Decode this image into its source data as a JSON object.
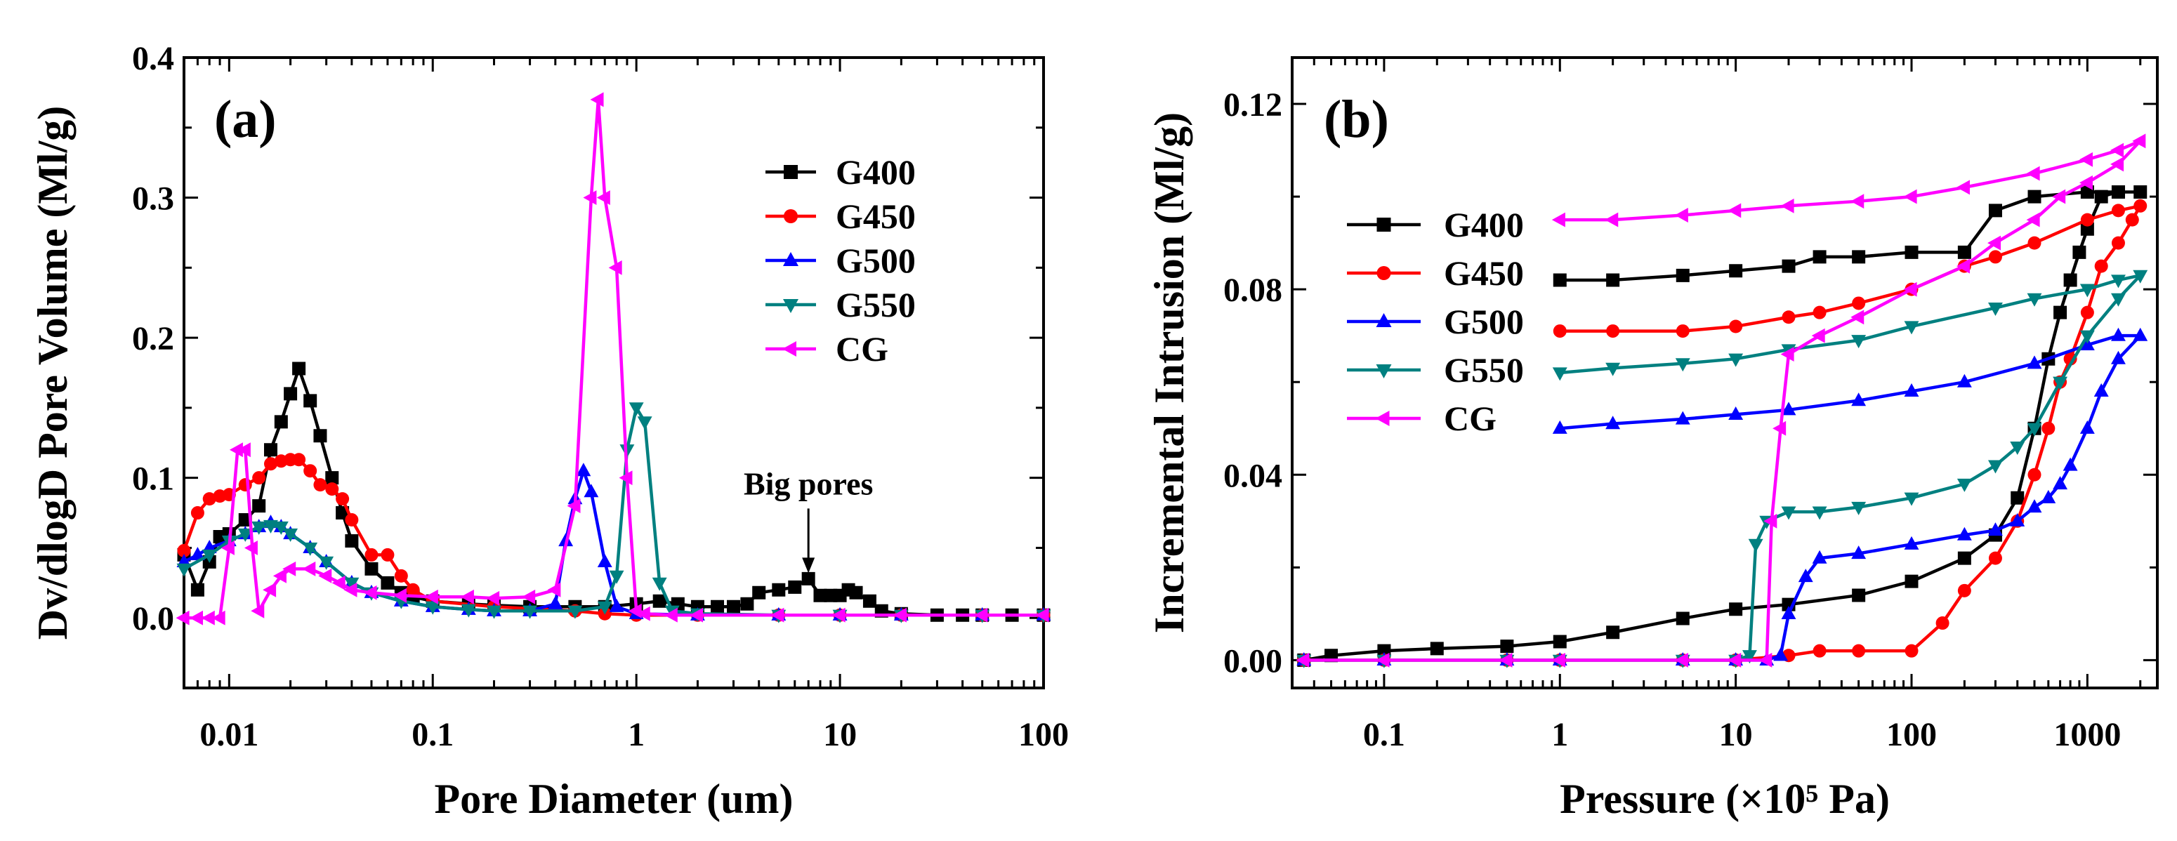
{
  "chart_data": [
    {
      "type": "line",
      "panel_label": "(a)",
      "xlabel": "Pore Diameter (um)",
      "ylabel": "Dv/dlogD Pore Volume (Ml/g)",
      "xscale": "log",
      "xlim": [
        0.006,
        100
      ],
      "ylim": [
        -0.05,
        0.4
      ],
      "xticks": [
        {
          "value": 0.01,
          "label": "0.01"
        },
        {
          "value": 0.1,
          "label": "0.1"
        },
        {
          "value": 1,
          "label": "1"
        },
        {
          "value": 10,
          "label": "10"
        },
        {
          "value": 100,
          "label": "100"
        }
      ],
      "yticks": [
        {
          "value": 0.0,
          "label": "0.0"
        },
        {
          "value": 0.1,
          "label": "0.1"
        },
        {
          "value": 0.2,
          "label": "0.2"
        },
        {
          "value": 0.3,
          "label": "0.3"
        },
        {
          "value": 0.4,
          "label": "0.4"
        }
      ],
      "legend_position": "top-right",
      "annotation": {
        "text": "Big pores",
        "x": 7,
        "y": 0.028
      },
      "series": [
        {
          "name": "G400",
          "color": "#000000",
          "marker": "square",
          "x": [
            0.006,
            0.007,
            0.008,
            0.009,
            0.01,
            0.012,
            0.014,
            0.016,
            0.018,
            0.02,
            0.022,
            0.025,
            0.028,
            0.032,
            0.036,
            0.04,
            0.05,
            0.06,
            0.07,
            0.08,
            0.1,
            0.15,
            0.2,
            0.3,
            0.5,
            0.7,
            1,
            1.3,
            1.6,
            2,
            2.5,
            3,
            3.5,
            4,
            5,
            6,
            7,
            8,
            9,
            10,
            11,
            12,
            14,
            16,
            20,
            30,
            40,
            50,
            70,
            100
          ],
          "y": [
            0.045,
            0.02,
            0.04,
            0.058,
            0.06,
            0.07,
            0.08,
            0.12,
            0.14,
            0.16,
            0.178,
            0.155,
            0.13,
            0.1,
            0.075,
            0.055,
            0.035,
            0.025,
            0.018,
            0.015,
            0.012,
            0.01,
            0.009,
            0.008,
            0.008,
            0.008,
            0.01,
            0.012,
            0.01,
            0.008,
            0.008,
            0.008,
            0.01,
            0.018,
            0.02,
            0.022,
            0.028,
            0.016,
            0.016,
            0.016,
            0.02,
            0.018,
            0.012,
            0.005,
            0.003,
            0.002,
            0.002,
            0.002,
            0.002,
            0.002
          ]
        },
        {
          "name": "G450",
          "color": "#ff0000",
          "marker": "circle",
          "x": [
            0.006,
            0.007,
            0.008,
            0.009,
            0.01,
            0.012,
            0.014,
            0.016,
            0.018,
            0.02,
            0.022,
            0.025,
            0.028,
            0.032,
            0.036,
            0.04,
            0.05,
            0.06,
            0.07,
            0.08,
            0.1,
            0.2,
            0.5,
            0.7,
            1,
            2,
            5,
            10,
            20,
            50,
            100
          ],
          "y": [
            0.048,
            0.075,
            0.085,
            0.087,
            0.088,
            0.095,
            0.1,
            0.11,
            0.112,
            0.113,
            0.113,
            0.105,
            0.095,
            0.092,
            0.085,
            0.07,
            0.045,
            0.045,
            0.03,
            0.02,
            0.012,
            0.008,
            0.005,
            0.003,
            0.002,
            0.002,
            0.002,
            0.002,
            0.002,
            0.002,
            0.002
          ]
        },
        {
          "name": "G500",
          "color": "#0000ff",
          "marker": "triangle-up",
          "x": [
            0.006,
            0.007,
            0.008,
            0.01,
            0.012,
            0.014,
            0.016,
            0.018,
            0.02,
            0.025,
            0.03,
            0.04,
            0.05,
            0.07,
            0.1,
            0.15,
            0.2,
            0.3,
            0.4,
            0.45,
            0.5,
            0.55,
            0.6,
            0.7,
            0.8,
            1,
            2,
            5,
            10,
            20,
            50,
            100
          ],
          "y": [
            0.04,
            0.045,
            0.05,
            0.055,
            0.06,
            0.065,
            0.068,
            0.065,
            0.06,
            0.05,
            0.04,
            0.025,
            0.018,
            0.012,
            0.008,
            0.006,
            0.005,
            0.005,
            0.01,
            0.055,
            0.085,
            0.105,
            0.09,
            0.04,
            0.008,
            0.003,
            0.002,
            0.002,
            0.002,
            0.002,
            0.002,
            0.002
          ]
        },
        {
          "name": "G550",
          "color": "#008080",
          "marker": "triangle-down",
          "x": [
            0.006,
            0.008,
            0.01,
            0.012,
            0.014,
            0.016,
            0.018,
            0.02,
            0.025,
            0.03,
            0.04,
            0.05,
            0.07,
            0.1,
            0.15,
            0.2,
            0.3,
            0.5,
            0.7,
            0.8,
            0.9,
            1.0,
            1.1,
            1.3,
            1.5,
            2,
            5,
            10,
            20,
            50,
            100
          ],
          "y": [
            0.035,
            0.045,
            0.055,
            0.06,
            0.065,
            0.066,
            0.065,
            0.06,
            0.05,
            0.04,
            0.025,
            0.018,
            0.012,
            0.008,
            0.006,
            0.005,
            0.005,
            0.005,
            0.008,
            0.03,
            0.12,
            0.15,
            0.14,
            0.025,
            0.005,
            0.003,
            0.002,
            0.002,
            0.002,
            0.002,
            0.002
          ]
        },
        {
          "name": "CG",
          "color": "#ff00ff",
          "marker": "triangle-left",
          "x": [
            0.006,
            0.007,
            0.008,
            0.009,
            0.01,
            0.011,
            0.012,
            0.013,
            0.014,
            0.016,
            0.018,
            0.02,
            0.025,
            0.03,
            0.035,
            0.04,
            0.05,
            0.07,
            0.1,
            0.15,
            0.2,
            0.3,
            0.4,
            0.5,
            0.6,
            0.65,
            0.7,
            0.8,
            0.9,
            1.0,
            1.1,
            1.5,
            2,
            5,
            10,
            20,
            50,
            100
          ],
          "y": [
            0.0,
            0.0,
            0.0,
            0.0,
            0.05,
            0.12,
            0.12,
            0.05,
            0.005,
            0.02,
            0.03,
            0.035,
            0.035,
            0.03,
            0.025,
            0.02,
            0.018,
            0.016,
            0.015,
            0.015,
            0.014,
            0.015,
            0.02,
            0.08,
            0.3,
            0.37,
            0.3,
            0.25,
            0.1,
            0.005,
            0.003,
            0.002,
            0.002,
            0.002,
            0.002,
            0.002,
            0.002,
            0.002
          ]
        }
      ]
    },
    {
      "type": "line",
      "panel_label": "(b)",
      "xlabel": "Pressure (×10⁵ Pa)",
      "ylabel": "Incremental Intrusion (Ml/g)",
      "xscale": "log",
      "xlim": [
        0.03,
        2500
      ],
      "ylim": [
        -0.006,
        0.13
      ],
      "xticks": [
        {
          "value": 0.1,
          "label": "0.1"
        },
        {
          "value": 1,
          "label": "1"
        },
        {
          "value": 10,
          "label": "10"
        },
        {
          "value": 100,
          "label": "100"
        },
        {
          "value": 1000,
          "label": "1000"
        }
      ],
      "yticks": [
        {
          "value": 0.0,
          "label": "0.00"
        },
        {
          "value": 0.04,
          "label": "0.04"
        },
        {
          "value": 0.08,
          "label": "0.08"
        },
        {
          "value": 0.12,
          "label": "0.12"
        }
      ],
      "legend_position": "top-left",
      "series": [
        {
          "name": "G400",
          "color": "#000000",
          "marker": "square",
          "x": [
            0.035,
            0.05,
            0.1,
            0.2,
            0.5,
            1,
            2,
            5,
            10,
            20,
            50,
            100,
            200,
            300,
            400,
            500,
            600,
            700,
            800,
            900,
            1000,
            1200,
            1500,
            2000,
            1500,
            1000,
            500,
            300,
            200,
            100,
            50,
            30,
            20,
            10,
            5,
            2,
            1
          ],
          "y": [
            0.0,
            0.001,
            0.002,
            0.0025,
            0.003,
            0.004,
            0.006,
            0.009,
            0.011,
            0.012,
            0.014,
            0.017,
            0.022,
            0.027,
            0.035,
            0.05,
            0.065,
            0.075,
            0.082,
            0.088,
            0.093,
            0.1,
            0.101,
            0.101,
            0.101,
            0.101,
            0.1,
            0.097,
            0.088,
            0.088,
            0.087,
            0.087,
            0.085,
            0.084,
            0.083,
            0.082,
            0.082
          ]
        },
        {
          "name": "G450",
          "color": "#ff0000",
          "marker": "circle",
          "x": [
            0.035,
            0.1,
            0.5,
            1,
            5,
            10,
            20,
            30,
            50,
            100,
            150,
            200,
            300,
            400,
            500,
            600,
            700,
            800,
            1000,
            1200,
            1500,
            1800,
            2000,
            1500,
            1000,
            500,
            300,
            200,
            100,
            50,
            30,
            20,
            10,
            5,
            2,
            1
          ],
          "y": [
            0.0,
            0.0,
            0.0,
            0.0,
            0.0,
            0.0,
            0.001,
            0.002,
            0.002,
            0.002,
            0.008,
            0.015,
            0.022,
            0.03,
            0.04,
            0.05,
            0.06,
            0.065,
            0.075,
            0.085,
            0.09,
            0.095,
            0.098,
            0.097,
            0.095,
            0.09,
            0.087,
            0.085,
            0.08,
            0.077,
            0.075,
            0.074,
            0.072,
            0.071,
            0.071,
            0.071
          ]
        },
        {
          "name": "G500",
          "color": "#0000ff",
          "marker": "triangle-up",
          "x": [
            0.035,
            0.1,
            0.5,
            1,
            5,
            10,
            15,
            18,
            20,
            25,
            30,
            50,
            100,
            200,
            300,
            400,
            500,
            600,
            700,
            800,
            1000,
            1200,
            1500,
            2000,
            1500,
            1000,
            500,
            200,
            100,
            50,
            20,
            10,
            5,
            2,
            1
          ],
          "y": [
            0.0,
            0.0,
            0.0,
            0.0,
            0.0,
            0.0,
            0.0,
            0.001,
            0.01,
            0.018,
            0.022,
            0.023,
            0.025,
            0.027,
            0.028,
            0.03,
            0.033,
            0.035,
            0.038,
            0.042,
            0.05,
            0.058,
            0.065,
            0.07,
            0.07,
            0.068,
            0.064,
            0.06,
            0.058,
            0.056,
            0.054,
            0.053,
            0.052,
            0.051,
            0.05
          ]
        },
        {
          "name": "G550",
          "color": "#008080",
          "marker": "triangle-down",
          "x": [
            0.035,
            0.1,
            0.5,
            1,
            5,
            10,
            12,
            13,
            15,
            20,
            30,
            50,
            100,
            200,
            300,
            400,
            500,
            700,
            1000,
            1500,
            2000,
            1500,
            1000,
            500,
            300,
            100,
            50,
            20,
            10,
            5,
            2,
            1
          ],
          "y": [
            0.0,
            0.0,
            0.0,
            0.0,
            0.0,
            0.0,
            0.001,
            0.025,
            0.03,
            0.032,
            0.032,
            0.033,
            0.035,
            0.038,
            0.042,
            0.046,
            0.05,
            0.06,
            0.07,
            0.078,
            0.083,
            0.082,
            0.08,
            0.078,
            0.076,
            0.072,
            0.069,
            0.067,
            0.065,
            0.064,
            0.063,
            0.062
          ]
        },
        {
          "name": "CG",
          "color": "#ff00ff",
          "marker": "triangle-left",
          "x": [
            0.035,
            0.1,
            0.5,
            1,
            5,
            10,
            15,
            16,
            18,
            20,
            30,
            50,
            100,
            200,
            300,
            500,
            700,
            1000,
            1500,
            2000,
            1500,
            1000,
            500,
            200,
            100,
            50,
            20,
            10,
            5,
            2,
            1
          ],
          "y": [
            0.0,
            0.0,
            0.0,
            0.0,
            0.0,
            0.0,
            0.0,
            0.03,
            0.05,
            0.066,
            0.07,
            0.074,
            0.08,
            0.085,
            0.09,
            0.095,
            0.1,
            0.103,
            0.107,
            0.112,
            0.11,
            0.108,
            0.105,
            0.102,
            0.1,
            0.099,
            0.098,
            0.097,
            0.096,
            0.095,
            0.095
          ]
        }
      ]
    }
  ]
}
